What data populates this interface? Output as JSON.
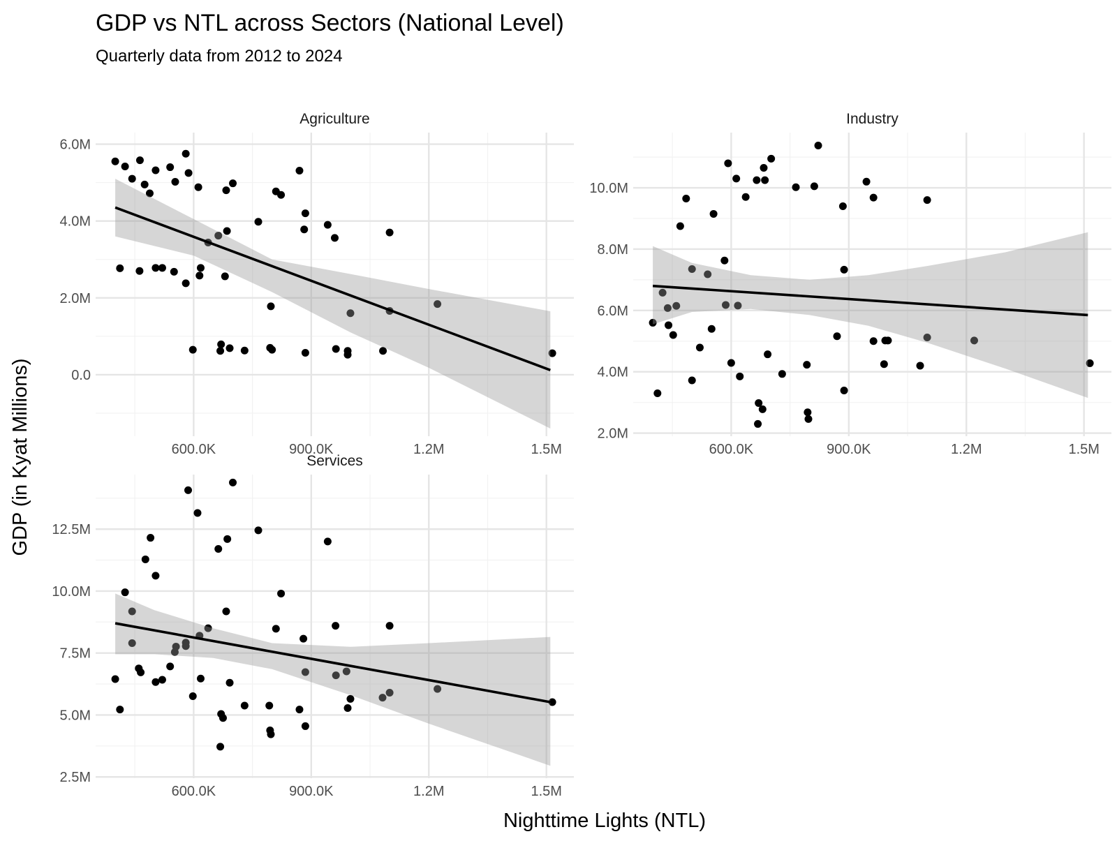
{
  "chart_data": {
    "type": "scatter",
    "title": "GDP vs NTL across Sectors (National Level)",
    "subtitle": "Quarterly data from 2012 to 2024",
    "xlabel": "Nighttime Lights (NTL)",
    "ylabel": "GDP (in Kyat Millions)",
    "grid": true,
    "legend": "none",
    "x_ticks": [
      {
        "value": 600000,
        "label": "600.0K"
      },
      {
        "value": 900000,
        "label": "900.0K"
      },
      {
        "value": 1200000,
        "label": "1.2M"
      },
      {
        "value": 1500000,
        "label": "1.5M"
      }
    ],
    "xlim": [
      350000,
      1570000
    ],
    "facets": [
      {
        "name": "Agriculture",
        "ylim": [
          -1600000,
          6300000
        ],
        "y_ticks": [
          {
            "value": 0,
            "label": "0.0"
          },
          {
            "value": 2000000,
            "label": "2.0M"
          },
          {
            "value": 4000000,
            "label": "4.0M"
          },
          {
            "value": 6000000,
            "label": "6.0M"
          }
        ],
        "fit": {
          "x0": 400000,
          "y0": 4350000,
          "x1": 1510000,
          "y1": 120000
        },
        "ci_upper": [
          [
            400000,
            5100000
          ],
          [
            600000,
            4050000
          ],
          [
            800000,
            3000000
          ],
          [
            1000000,
            2620000
          ],
          [
            1200000,
            2230000
          ],
          [
            1510000,
            1650000
          ]
        ],
        "ci_lower": [
          [
            400000,
            3600000
          ],
          [
            600000,
            3100000
          ],
          [
            800000,
            2150000
          ],
          [
            1000000,
            1100000
          ],
          [
            1200000,
            180000
          ],
          [
            1510000,
            -1400000
          ]
        ],
        "points": [
          [
            400000,
            5550000
          ],
          [
            425000,
            5420000
          ],
          [
            443000,
            5100000
          ],
          [
            463000,
            5580000
          ],
          [
            475000,
            4950000
          ],
          [
            488000,
            4720000
          ],
          [
            503000,
            5320000
          ],
          [
            540000,
            5400000
          ],
          [
            553000,
            5020000
          ],
          [
            580000,
            5750000
          ],
          [
            587000,
            5250000
          ],
          [
            612000,
            4880000
          ],
          [
            683000,
            4800000
          ],
          [
            700000,
            4980000
          ],
          [
            810000,
            4770000
          ],
          [
            823000,
            4680000
          ],
          [
            870000,
            5310000
          ],
          [
            885000,
            4200000
          ],
          [
            765000,
            3980000
          ],
          [
            882000,
            3780000
          ],
          [
            942000,
            3900000
          ],
          [
            960000,
            3560000
          ],
          [
            1100000,
            3700000
          ],
          [
            412000,
            2770000
          ],
          [
            462000,
            2700000
          ],
          [
            503000,
            2780000
          ],
          [
            520000,
            2780000
          ],
          [
            550000,
            2680000
          ],
          [
            580000,
            2380000
          ],
          [
            618000,
            2780000
          ],
          [
            615000,
            2580000
          ],
          [
            637000,
            3440000
          ],
          [
            663000,
            3620000
          ],
          [
            685000,
            3740000
          ],
          [
            680000,
            2560000
          ],
          [
            797000,
            1780000
          ],
          [
            1000000,
            1600000
          ],
          [
            1100000,
            1660000
          ],
          [
            1222000,
            1840000
          ],
          [
            598000,
            650000
          ],
          [
            670000,
            790000
          ],
          [
            668000,
            620000
          ],
          [
            692000,
            690000
          ],
          [
            730000,
            630000
          ],
          [
            795000,
            700000
          ],
          [
            800000,
            650000
          ],
          [
            885000,
            570000
          ],
          [
            963000,
            670000
          ],
          [
            993000,
            620000
          ],
          [
            993000,
            520000
          ],
          [
            1083000,
            620000
          ],
          [
            1515000,
            560000
          ]
        ]
      },
      {
        "name": "Industry",
        "ylim": [
          1900000,
          11800000
        ],
        "y_ticks": [
          {
            "value": 2000000,
            "label": "2.0M"
          },
          {
            "value": 4000000,
            "label": "4.0M"
          },
          {
            "value": 6000000,
            "label": "6.0M"
          },
          {
            "value": 8000000,
            "label": "8.0M"
          },
          {
            "value": 10000000,
            "label": "10.0M"
          }
        ],
        "fit": {
          "x0": 400000,
          "y0": 6800000,
          "x1": 1510000,
          "y1": 5850000
        },
        "ci_upper": [
          [
            400000,
            8100000
          ],
          [
            500000,
            7550000
          ],
          [
            650000,
            7150000
          ],
          [
            800000,
            7000000
          ],
          [
            950000,
            7150000
          ],
          [
            1100000,
            7450000
          ],
          [
            1300000,
            7900000
          ],
          [
            1510000,
            8550000
          ]
        ],
        "ci_lower": [
          [
            400000,
            5550000
          ],
          [
            500000,
            5950000
          ],
          [
            650000,
            6050000
          ],
          [
            800000,
            5850000
          ],
          [
            950000,
            5500000
          ],
          [
            1100000,
            4950000
          ],
          [
            1300000,
            4100000
          ],
          [
            1510000,
            3150000
          ]
        ],
        "points": [
          [
            400000,
            5600000
          ],
          [
            412000,
            3300000
          ],
          [
            425000,
            6580000
          ],
          [
            438000,
            6080000
          ],
          [
            440000,
            5520000
          ],
          [
            452000,
            5200000
          ],
          [
            460000,
            6150000
          ],
          [
            470000,
            8750000
          ],
          [
            485000,
            9650000
          ],
          [
            500000,
            7350000
          ],
          [
            500000,
            3720000
          ],
          [
            520000,
            4790000
          ],
          [
            540000,
            7180000
          ],
          [
            550000,
            5400000
          ],
          [
            555000,
            9150000
          ],
          [
            583000,
            7630000
          ],
          [
            586000,
            6180000
          ],
          [
            592000,
            10800000
          ],
          [
            600000,
            4290000
          ],
          [
            613000,
            10300000
          ],
          [
            617000,
            6160000
          ],
          [
            622000,
            3850000
          ],
          [
            637000,
            9700000
          ],
          [
            665000,
            10250000
          ],
          [
            670000,
            2980000
          ],
          [
            668000,
            2300000
          ],
          [
            680000,
            2780000
          ],
          [
            683000,
            10650000
          ],
          [
            686000,
            10250000
          ],
          [
            693000,
            4570000
          ],
          [
            702000,
            10950000
          ],
          [
            730000,
            3930000
          ],
          [
            765000,
            10020000
          ],
          [
            793000,
            4230000
          ],
          [
            795000,
            2680000
          ],
          [
            797000,
            2460000
          ],
          [
            812000,
            10050000
          ],
          [
            822000,
            11380000
          ],
          [
            870000,
            5160000
          ],
          [
            885000,
            9400000
          ],
          [
            888000,
            7330000
          ],
          [
            888000,
            3390000
          ],
          [
            945000,
            10200000
          ],
          [
            963000,
            9680000
          ],
          [
            963000,
            5000000
          ],
          [
            990000,
            4250000
          ],
          [
            993000,
            5020000
          ],
          [
            1000000,
            5020000
          ],
          [
            1082000,
            4200000
          ],
          [
            1100000,
            5120000
          ],
          [
            1100000,
            9600000
          ],
          [
            1220000,
            5020000
          ],
          [
            1515000,
            4280000
          ]
        ]
      },
      {
        "name": "Services",
        "ylim": [
          2450000,
          14700000
        ],
        "y_ticks": [
          {
            "value": 2500000,
            "label": "2.5M"
          },
          {
            "value": 5000000,
            "label": "5.0M"
          },
          {
            "value": 7500000,
            "label": "7.5M"
          },
          {
            "value": 10000000,
            "label": "10.0M"
          },
          {
            "value": 12500000,
            "label": "12.5M"
          }
        ],
        "fit": {
          "x0": 400000,
          "y0": 8700000,
          "x1": 1510000,
          "y1": 5520000
        },
        "ci_upper": [
          [
            400000,
            9900000
          ],
          [
            500000,
            9230000
          ],
          [
            650000,
            8500000
          ],
          [
            800000,
            7900000
          ],
          [
            1000000,
            7750000
          ],
          [
            1200000,
            7900000
          ],
          [
            1510000,
            8150000
          ]
        ],
        "ci_lower": [
          [
            400000,
            7450000
          ],
          [
            500000,
            7450000
          ],
          [
            650000,
            7300000
          ],
          [
            800000,
            6850000
          ],
          [
            1000000,
            5800000
          ],
          [
            1200000,
            4650000
          ],
          [
            1510000,
            2950000
          ]
        ],
        "points": [
          [
            400000,
            6450000
          ],
          [
            412000,
            5220000
          ],
          [
            425000,
            9950000
          ],
          [
            443000,
            9180000
          ],
          [
            443000,
            7900000
          ],
          [
            460000,
            6880000
          ],
          [
            465000,
            6720000
          ],
          [
            477000,
            11280000
          ],
          [
            490000,
            12150000
          ],
          [
            503000,
            10620000
          ],
          [
            503000,
            6330000
          ],
          [
            520000,
            6420000
          ],
          [
            540000,
            6960000
          ],
          [
            552000,
            7540000
          ],
          [
            555000,
            7760000
          ],
          [
            580000,
            7780000
          ],
          [
            580000,
            7920000
          ],
          [
            586000,
            14070000
          ],
          [
            598000,
            5760000
          ],
          [
            610000,
            13150000
          ],
          [
            615000,
            8200000
          ],
          [
            618000,
            6470000
          ],
          [
            637000,
            8500000
          ],
          [
            663000,
            11700000
          ],
          [
            670000,
            5040000
          ],
          [
            675000,
            4880000
          ],
          [
            668000,
            3720000
          ],
          [
            683000,
            9180000
          ],
          [
            686000,
            12100000
          ],
          [
            692000,
            6300000
          ],
          [
            700000,
            14380000
          ],
          [
            730000,
            5380000
          ],
          [
            765000,
            12450000
          ],
          [
            793000,
            5380000
          ],
          [
            795000,
            4380000
          ],
          [
            797000,
            4220000
          ],
          [
            810000,
            8480000
          ],
          [
            823000,
            9900000
          ],
          [
            870000,
            5220000
          ],
          [
            880000,
            8080000
          ],
          [
            885000,
            6730000
          ],
          [
            885000,
            4550000
          ],
          [
            942000,
            12000000
          ],
          [
            962000,
            8600000
          ],
          [
            963000,
            6600000
          ],
          [
            990000,
            6760000
          ],
          [
            993000,
            5280000
          ],
          [
            1000000,
            5650000
          ],
          [
            1082000,
            5700000
          ],
          [
            1100000,
            5900000
          ],
          [
            1100000,
            8600000
          ],
          [
            1222000,
            6050000
          ],
          [
            1515000,
            5520000
          ]
        ]
      }
    ]
  }
}
